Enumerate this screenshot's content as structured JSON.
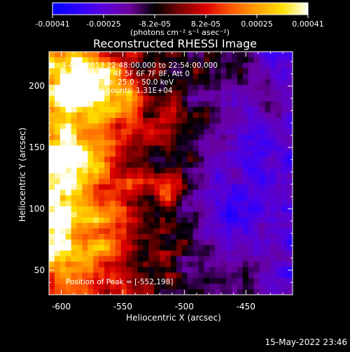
{
  "title": "Reconstructed RHESSI Image",
  "colorbar": {
    "tick_labels": [
      "-0.00041",
      "-0.00025",
      "-8.2e-05",
      "8.2e-05",
      "0.00025",
      "0.00041"
    ],
    "unit_label": "(photons cm⁻² s⁻¹ asec⁻²)",
    "colors": [
      "#0000ff",
      "#2c00ff",
      "#5a00dd",
      "#6f00a0",
      "#000000",
      "#7a0000",
      "#dd0000",
      "#ff5a00",
      "#ffa000",
      "#ffe000",
      "#ffffff"
    ]
  },
  "info_lines": [
    "3-Aug-2013 22:48:00.000 to 22:54:00.000",
    "Detectors: 3F 4F 5F 6F 7F 8F, Att 0",
    "Energy Range: 25.0 - 50.0 keV",
    "Clean. Total counts: 1.31E+04"
  ],
  "peak_label": "Position of Peak = [-552,198]",
  "x_axis": {
    "label": "Heliocentric X (arcsec)",
    "ticks": [
      "-600",
      "-550",
      "-500",
      "-450"
    ],
    "tick_values": [
      -600,
      -550,
      -500,
      -450
    ],
    "range": [
      -610,
      -412
    ]
  },
  "y_axis": {
    "label": "Heliocentric Y (arcsec)",
    "ticks": [
      "50",
      "100",
      "150",
      "200"
    ],
    "tick_values": [
      50,
      100,
      150,
      200
    ],
    "range": [
      30,
      228
    ]
  },
  "timestamp": "15-May-2022 23:46"
}
